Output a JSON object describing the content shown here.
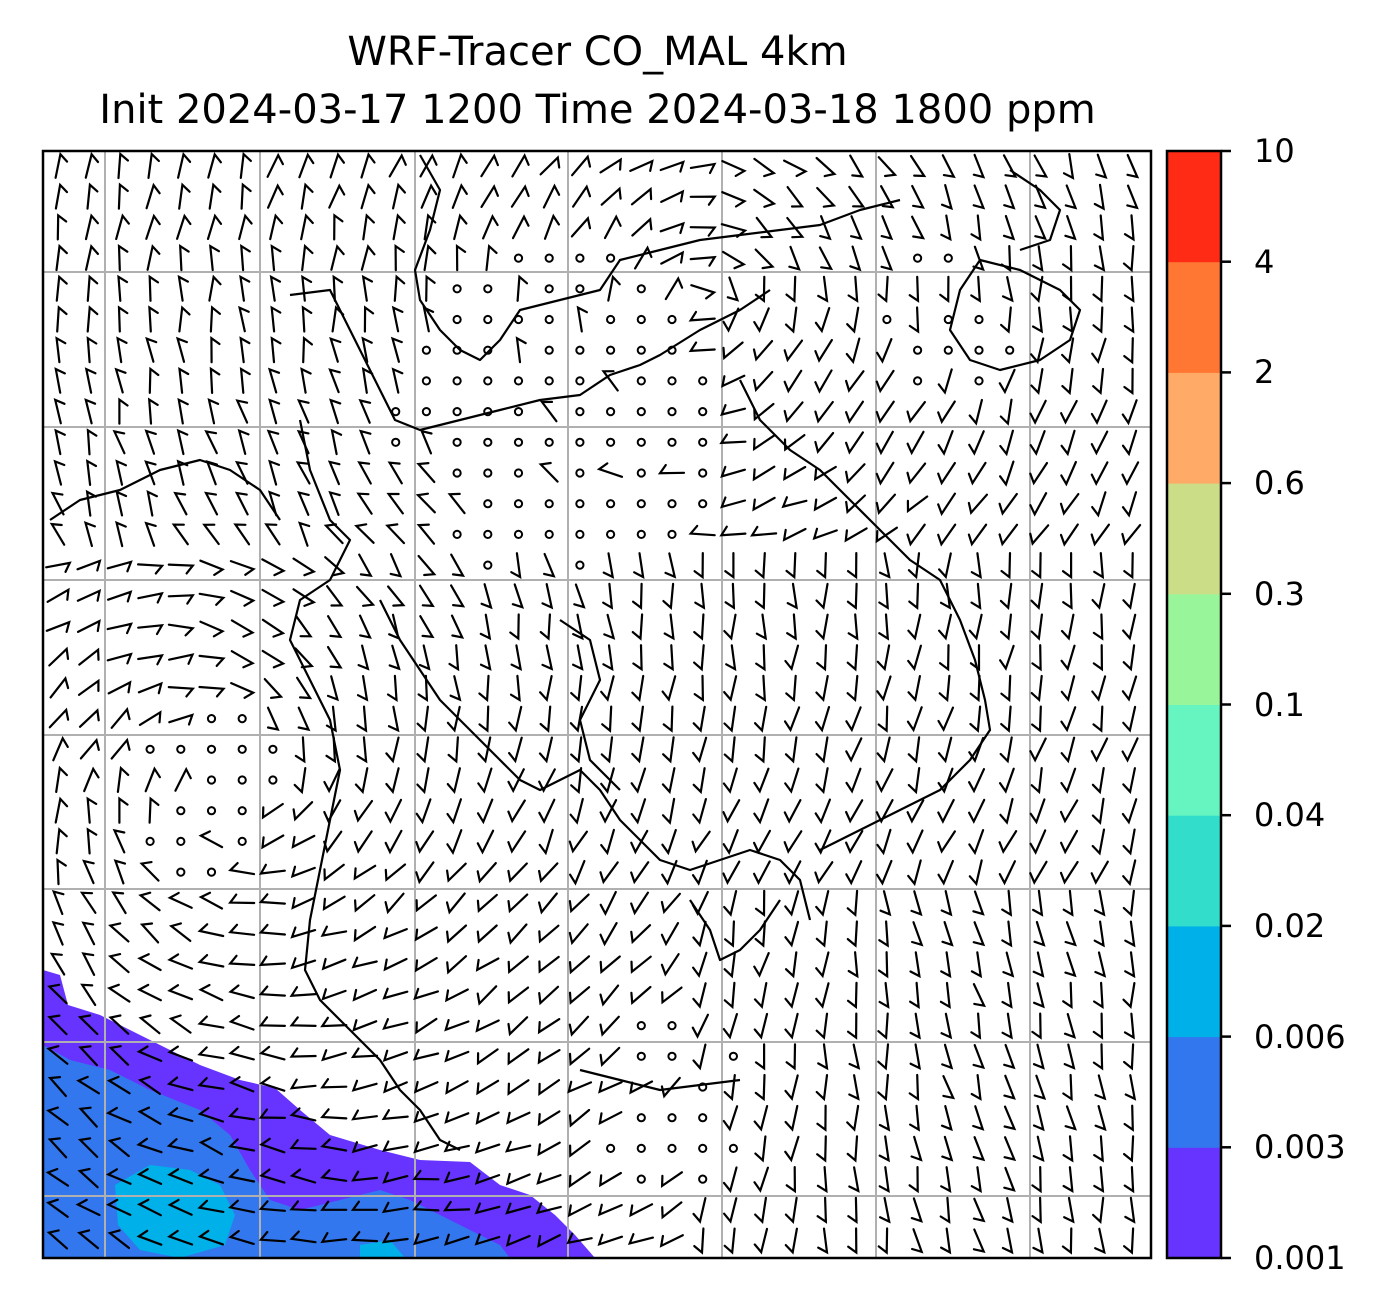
{
  "title": {
    "line1": "WRF-Tracer CO_MAL 4km",
    "line2": "Init 2024-03-17 1200 Time 2024-03-18 1800 ppm"
  },
  "colorbar": {
    "levels": [
      "10",
      "4",
      "2",
      "0.6",
      "0.3",
      "0.1",
      "0.04",
      "0.02",
      "0.006",
      "0.003",
      "0.001"
    ],
    "colors_bottom_to_top": [
      "#6633ff",
      "#3377ee",
      "#00b0e8",
      "#33ddcc",
      "#66f5c0",
      "#99f599",
      "#ccdd88",
      "#ffaa66",
      "#ff7733",
      "#ff2b14"
    ]
  },
  "map": {
    "gridlines": true,
    "field_colors": {
      "level_0.001": "#6633ff",
      "level_0.003": "#3377ee",
      "level_0.006": "#00b0e8"
    },
    "symbols": [
      "wind-barbs",
      "calm-circles",
      "coastlines",
      "borders"
    ]
  }
}
